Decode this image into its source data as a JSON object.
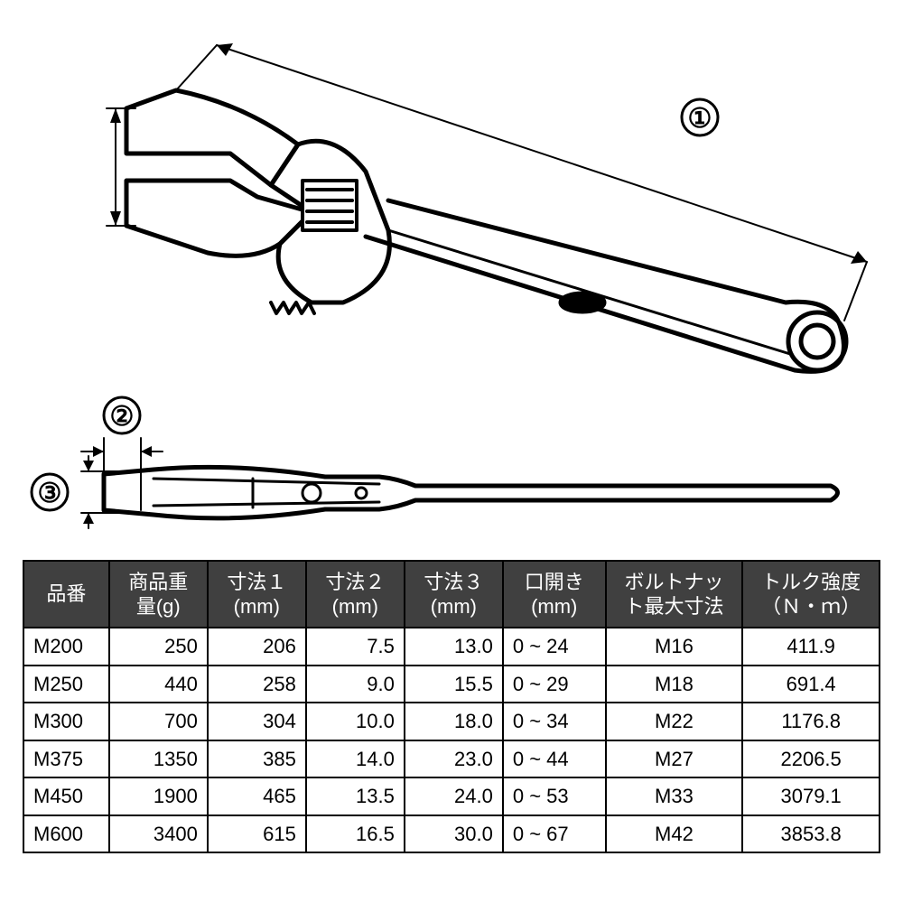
{
  "diagram": {
    "callouts": {
      "one": "①",
      "two": "②",
      "three": "③"
    },
    "stroke": "#000000",
    "background": "#ffffff",
    "callout_fontsize": 30
  },
  "table": {
    "header_bg": "#404040",
    "header_fg": "#ffffff",
    "border_color": "#000000",
    "cell_bg": "#ffffff",
    "cell_fg": "#000000",
    "fontsize": 22,
    "columns": [
      {
        "label": "品番",
        "align": "left"
      },
      {
        "label": "商品重量(g)",
        "align": "right"
      },
      {
        "label": "寸法１(mm)",
        "align": "right"
      },
      {
        "label": "寸法２(mm)",
        "align": "right"
      },
      {
        "label": "寸法３(mm)",
        "align": "right"
      },
      {
        "label": "口開き(mm)",
        "align": "left"
      },
      {
        "label": "ボルトナット最大寸法",
        "align": "center"
      },
      {
        "label": "トルク強度（Ｎ・ｍ）",
        "align": "center"
      }
    ],
    "rows": [
      [
        "M200",
        "250",
        "206",
        "7.5",
        "13.0",
        "0 ~ 24",
        "M16",
        "411.9"
      ],
      [
        "M250",
        "440",
        "258",
        "9.0",
        "15.5",
        "0 ~ 29",
        "M18",
        "691.4"
      ],
      [
        "M300",
        "700",
        "304",
        "10.0",
        "18.0",
        "0 ~ 34",
        "M22",
        "1176.8"
      ],
      [
        "M375",
        "1350",
        "385",
        "14.0",
        "23.0",
        "0 ~ 44",
        "M27",
        "2206.5"
      ],
      [
        "M450",
        "1900",
        "465",
        "13.5",
        "24.0",
        "0 ~ 53",
        "M33",
        "3079.1"
      ],
      [
        "M600",
        "3400",
        "615",
        "16.5",
        "30.0",
        "0 ~ 67",
        "M42",
        "3853.8"
      ]
    ]
  }
}
